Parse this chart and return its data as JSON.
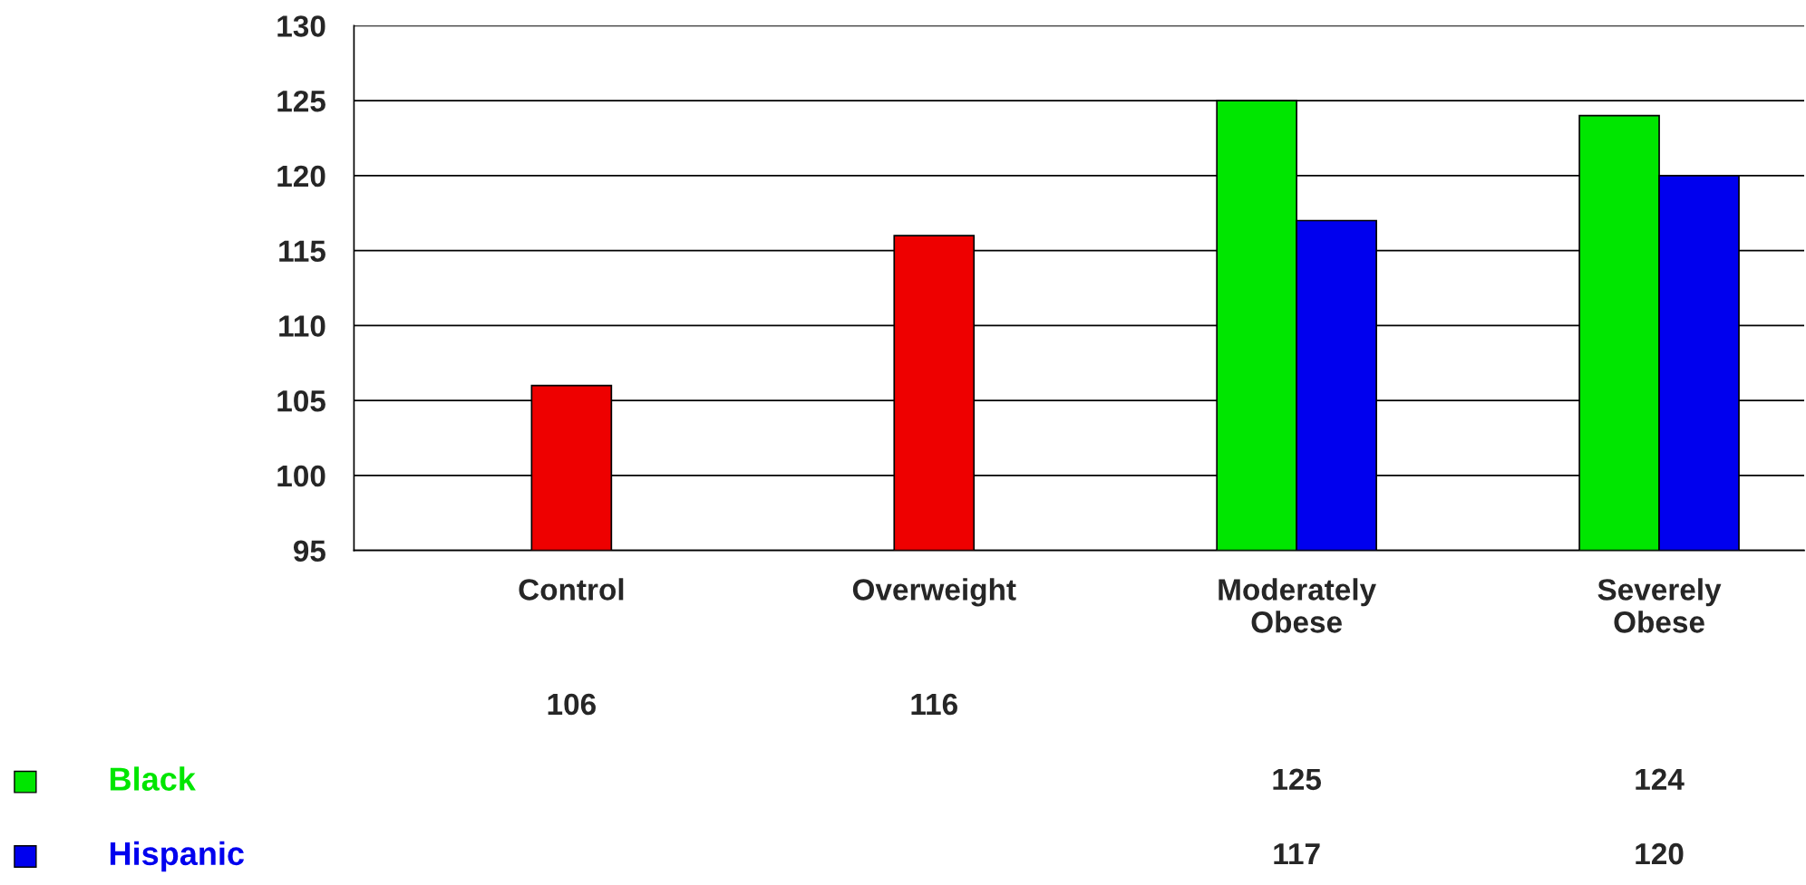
{
  "chart_data": {
    "type": "bar",
    "categories": [
      "Control",
      "Overweight",
      "Moderately\nObese",
      "Severely\nObese"
    ],
    "series": [
      {
        "color": "#ee0000",
        "values": [
          106,
          116,
          null,
          null
        ]
      },
      {
        "name": "Black",
        "color": "#00e600",
        "values": [
          null,
          null,
          125,
          124
        ]
      },
      {
        "name": "Hispanic",
        "color": "#0000ee",
        "values": [
          null,
          null,
          117,
          120
        ]
      }
    ],
    "ylim": [
      95,
      130
    ],
    "yticks": [
      95,
      100,
      105,
      110,
      115,
      120,
      125,
      130
    ],
    "grid": "y",
    "data_labels": true,
    "legend": "bottom left"
  }
}
